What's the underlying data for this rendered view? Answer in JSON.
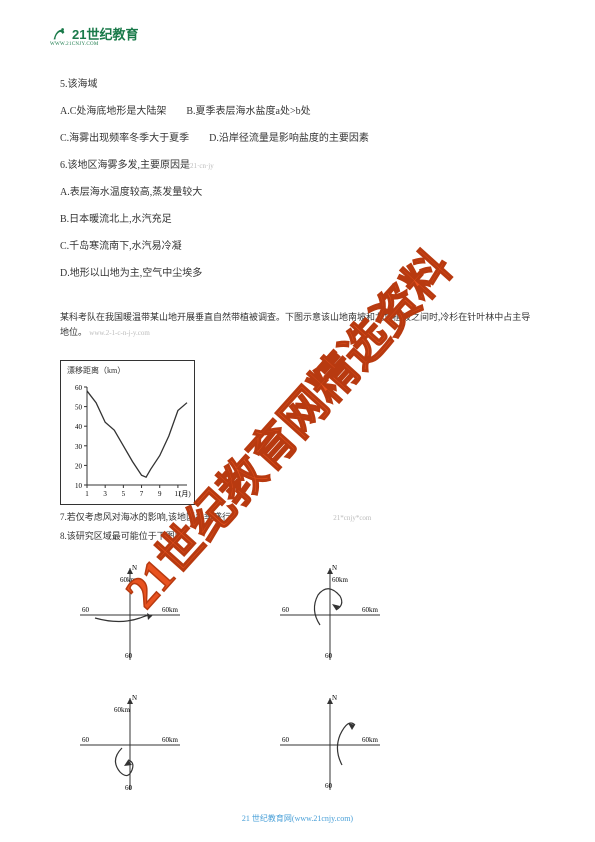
{
  "logo": {
    "main": "21世纪教育",
    "sub": "WWW.21CNJY.COM"
  },
  "body": {
    "p1": "5.该海域",
    "p2": "A.C处海底地形是大陆架　　B.夏季表层海水盐度a处>b处",
    "p3": "C.海雾出现频率冬季大于夏季　　D.沿岸径流量是影响盐度的主要因素",
    "p4": "6.该地区海雾多发,主要原因是",
    "wm1": "21·cn·jy",
    "p5": "A.表层海水温度较高,蒸发量较大",
    "p6": "B.日本暖流北上,水汽充足",
    "p7": "C.千岛寒流南下,水汽易冷凝",
    "p8": "D.地形以山地为主,空气中尘埃多",
    "q_context": "某科考队在我国暖温带某山地开展垂直自然带植被调查。下图示意该山地南坡和北坡植被之间时,冷杉在针叶林中占主导地位。",
    "wm2": "www.2-1-c-n-j-y.com",
    "chart": {
      "ylabel": "漂移距离（km）",
      "xlabel": "(月)",
      "xticks": [
        1,
        3,
        5,
        7,
        9,
        11
      ],
      "yticks": [
        10,
        20,
        30,
        40,
        50,
        60
      ],
      "path_points": [
        [
          1,
          58
        ],
        [
          2,
          52
        ],
        [
          3,
          42
        ],
        [
          4,
          38
        ],
        [
          5,
          30
        ],
        [
          6,
          22
        ],
        [
          7,
          15
        ],
        [
          7.5,
          14
        ],
        [
          8,
          18
        ],
        [
          9,
          25
        ],
        [
          10,
          35
        ],
        [
          11,
          48
        ],
        [
          12,
          52
        ]
      ]
    },
    "q7": "7.若仅考虑风对海冰的影响,该地区冬季盛行",
    "wm3": "21*cnjy*com",
    "q8": "8.该研究区域最可能位于下图中",
    "diagrams": {
      "n_label": "N",
      "a": {
        "labels": {
          "t": "60km",
          "l": "60",
          "r": "60km",
          "b": "60"
        }
      },
      "b": {
        "labels": {
          "t": "60km",
          "l": "60",
          "r": "60km",
          "b": "60"
        }
      },
      "c": {
        "labels": {
          "t": "60km",
          "l": "60",
          "r": "60km",
          "b": "60"
        }
      },
      "d": {
        "labels": {
          "t": "",
          "l": "60",
          "r": "60km",
          "b": "60"
        }
      }
    }
  },
  "footer": {
    "text": "21 世纪教育网",
    "url": "(www.21cnjy.com)"
  },
  "watermark": "21世纪教育网精选资料",
  "colors": {
    "brand": "#1a7a4a",
    "wm_orange": "#e8521f",
    "footer": "#4aa0d8",
    "line": "#333"
  }
}
